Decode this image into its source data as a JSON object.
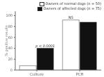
{
  "chart_data": {
    "type": "bar",
    "categories": [
      "Culture",
      "PCR"
    ],
    "series": [
      {
        "name": "Owners of normal dogs (n = 50)",
        "color": "#ffffff",
        "values": [
          8,
          92
        ]
      },
      {
        "name": "Owners of affected dogs (n = 75)",
        "color": "#111111",
        "values": [
          40,
          88
        ]
      }
    ],
    "y_label": "% positive results",
    "ylim": [
      0,
      108
    ],
    "yticks": [
      0,
      20,
      40,
      60,
      80,
      100
    ],
    "legend": "upper right",
    "annotations": [
      {
        "text": "p < 0.0001",
        "category": "Culture",
        "series": "Owners of affected dogs (n = 75)"
      },
      {
        "text": "NS",
        "category": "PCR",
        "series": "Owners of normal dogs (n = 50)"
      }
    ]
  }
}
